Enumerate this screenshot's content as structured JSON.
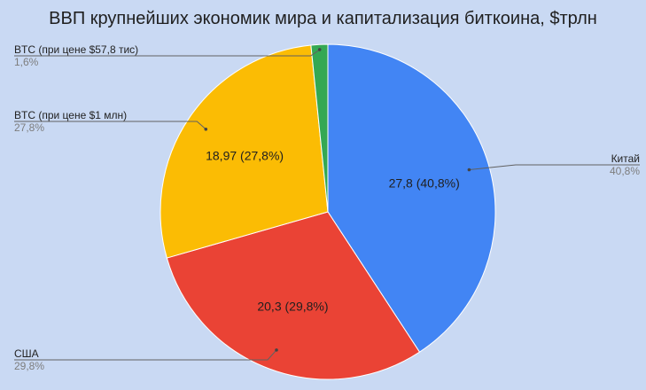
{
  "chart_data": {
    "type": "pie",
    "title": "ВВП крупнейших экономик мира и капитализация биткоина, $трлн",
    "slices": [
      {
        "name": "Китай",
        "value": 27.8,
        "value_label": "27,8 (40,8%)",
        "percent_label": "40,8%",
        "color": "#4285f4"
      },
      {
        "name": "США",
        "value": 20.3,
        "value_label": "20,3 (29,8%)",
        "percent_label": "29,8%",
        "color": "#ea4335"
      },
      {
        "name": "BTC (при цене $1 млн)",
        "value": 18.97,
        "value_label": "18,97 (27,8%)",
        "percent_label": "27,8%",
        "color": "#fbbc04"
      },
      {
        "name": "BTC (при цене $57,8 тис)",
        "value": 1.1,
        "value_label": "",
        "percent_label": "1,6%",
        "color": "#34a853"
      }
    ],
    "start_angle_deg": 0,
    "direction": "clockwise",
    "legend": "callouts"
  }
}
